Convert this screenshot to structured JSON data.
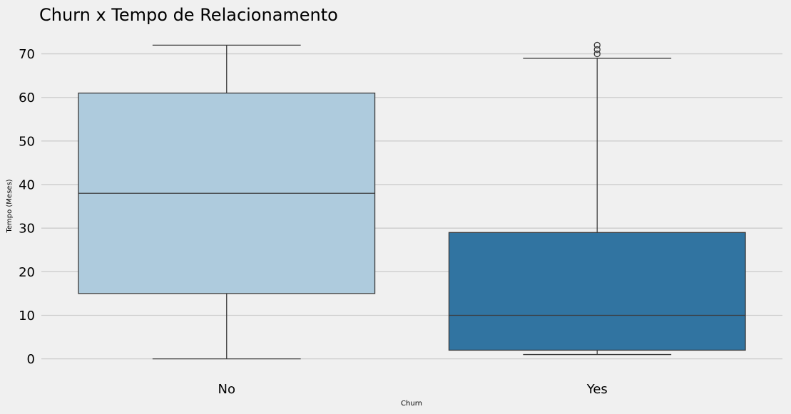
{
  "chart_data": {
    "type": "box",
    "title": "Churn x Tempo de Relacionamento",
    "xlabel": "Churn",
    "ylabel": "Tempo (Meses)",
    "categories": [
      "No",
      "Yes"
    ],
    "ylim": [
      -3,
      75
    ],
    "yticks": [
      0,
      10,
      20,
      30,
      40,
      50,
      60,
      70
    ],
    "grid": true,
    "boxes": [
      {
        "category": "No",
        "whisker_low": 0,
        "q1": 15,
        "median": 38,
        "q3": 61,
        "whisker_high": 72,
        "outliers": [],
        "color": "#aecbdd"
      },
      {
        "category": "Yes",
        "whisker_low": 1,
        "q1": 2,
        "median": 10,
        "q3": 29,
        "whisker_high": 69,
        "outliers": [
          70,
          71,
          72
        ],
        "color": "#3174a1"
      }
    ]
  }
}
